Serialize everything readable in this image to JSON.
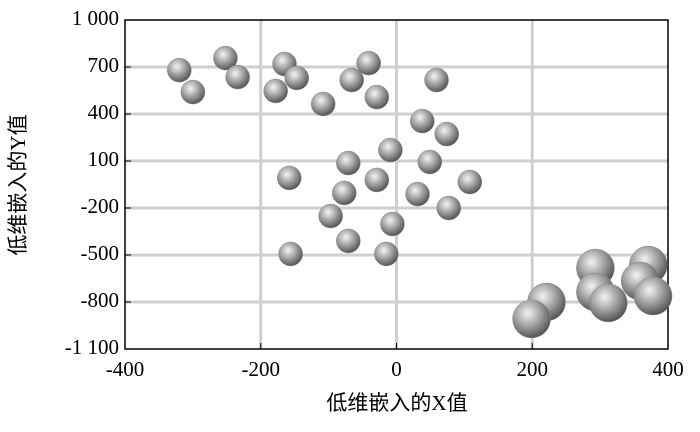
{
  "chart_data": {
    "type": "scatter",
    "xlabel": "低维嵌入的X值",
    "ylabel": "低维嵌入的Y值",
    "x": [
      -320,
      -300,
      -252,
      -234,
      -165,
      -147,
      -178,
      -108,
      -66,
      -41,
      -29,
      59,
      38,
      74,
      -9,
      -71,
      49,
      -158,
      -29,
      -77,
      31,
      108,
      -97,
      77,
      -6,
      -71,
      -156,
      -15,
      221,
      199,
      293,
      293,
      312,
      371,
      359,
      378
    ],
    "y": [
      680,
      540,
      757,
      636,
      719,
      630,
      547,
      464,
      617,
      725,
      508,
      617,
      355,
      272,
      170,
      87,
      94,
      -8,
      -21,
      -104,
      -111,
      -34,
      -251,
      -200,
      -302,
      -410,
      -493,
      -493,
      -800,
      -908,
      -583,
      -736,
      -806,
      -564,
      -666,
      -762
    ],
    "sizes": [
      12,
      12,
      12,
      12,
      12,
      12,
      12,
      12,
      12,
      12,
      12,
      12,
      12,
      12,
      12,
      12,
      12,
      12,
      12,
      12,
      12,
      12,
      12,
      12,
      12,
      12,
      12,
      12,
      19,
      19,
      19,
      19,
      19,
      19,
      19,
      19
    ],
    "color": "#8c8c8c",
    "xlim": [
      -400,
      400
    ],
    "xticks": [
      -400,
      -200,
      0,
      200,
      400
    ],
    "ylim": [
      -1100,
      1000
    ],
    "yticks": [
      {
        "value": 1000,
        "label": "1 000"
      },
      700,
      400,
      100,
      -200,
      -500,
      -800,
      {
        "value": -1100,
        "label": "-1 100"
      }
    ],
    "grid": true
  }
}
